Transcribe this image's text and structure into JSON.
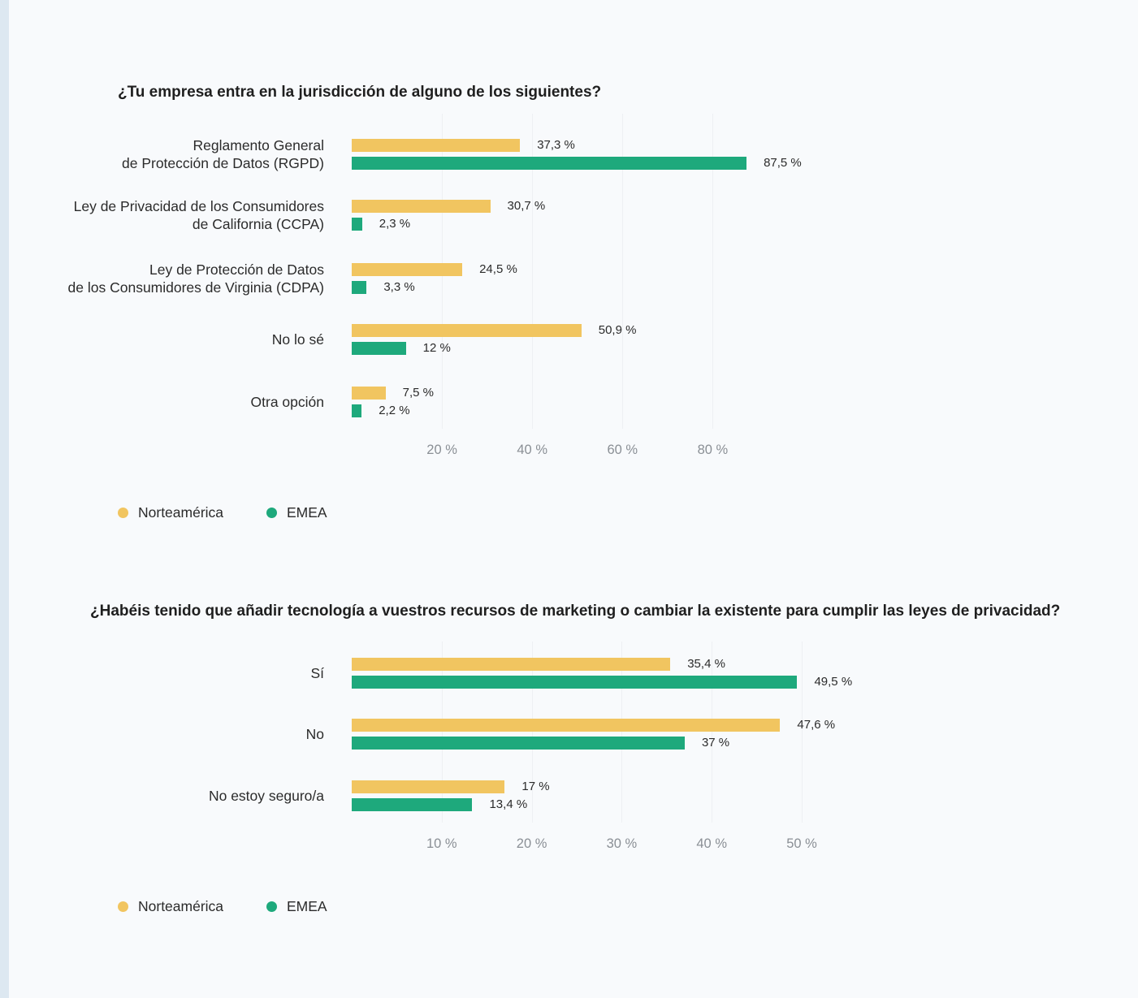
{
  "colors": {
    "norteamerica": "#f1c560",
    "emea": "#1ea97c"
  },
  "chart_data": [
    {
      "type": "bar",
      "orientation": "horizontal",
      "title": "¿Tu empresa entra en la jurisdicción de alguno de los siguientes?",
      "categories": [
        [
          "Reglamento General",
          "de Protección de Datos (RGPD)"
        ],
        [
          "Ley de Privacidad de los Consumidores",
          "de California (CCPA)"
        ],
        [
          "Ley de Protección de Datos",
          "de los Consumidores de Virginia (CDPA)"
        ],
        [
          "No lo sé"
        ],
        [
          "Otra opción"
        ]
      ],
      "series": [
        {
          "name": "Norteamérica",
          "color": "#f1c560",
          "values": [
            37.3,
            30.7,
            24.5,
            50.9,
            7.5
          ],
          "labels": [
            "37,3 %",
            "30,7 %",
            "24,5 %",
            "50,9 %",
            "7,5 %"
          ]
        },
        {
          "name": "EMEA",
          "color": "#1ea97c",
          "values": [
            87.5,
            2.3,
            3.3,
            12,
            2.2
          ],
          "labels": [
            "87,5 %",
            "2,3 %",
            "3,3 %",
            "12 %",
            "2,2 %"
          ]
        }
      ],
      "xticks": [
        20,
        40,
        60,
        80
      ],
      "xtick_labels": [
        "20 %",
        "40 %",
        "60 %",
        "80 %"
      ],
      "xlim": [
        0,
        94.3
      ],
      "legend": [
        "Norteamérica",
        "EMEA"
      ],
      "legend_position": "bottom-left"
    },
    {
      "type": "bar",
      "orientation": "horizontal",
      "title": "¿Habéis tenido que añadir tecnología a vuestros recursos de marketing o cambiar la existente para cumplir las leyes de privacidad?",
      "categories": [
        [
          "Sí"
        ],
        [
          "No"
        ],
        [
          "No estoy seguro/a"
        ]
      ],
      "series": [
        {
          "name": "Norteamérica",
          "color": "#f1c560",
          "values": [
            35.4,
            47.6,
            17
          ],
          "labels": [
            "35,4 %",
            "47,6 %",
            "17 %"
          ]
        },
        {
          "name": "EMEA",
          "color": "#1ea97c",
          "values": [
            49.5,
            37,
            13.4
          ],
          "labels": [
            "49,5 %",
            "37 %",
            "13,4 %"
          ]
        }
      ],
      "xticks": [
        10,
        20,
        30,
        40,
        50
      ],
      "xtick_labels": [
        "10 %",
        "20 %",
        "30 %",
        "40 %",
        "50 %"
      ],
      "xlim": [
        0,
        50
      ],
      "legend": [
        "Norteamérica",
        "EMEA"
      ],
      "legend_position": "bottom-left"
    }
  ]
}
